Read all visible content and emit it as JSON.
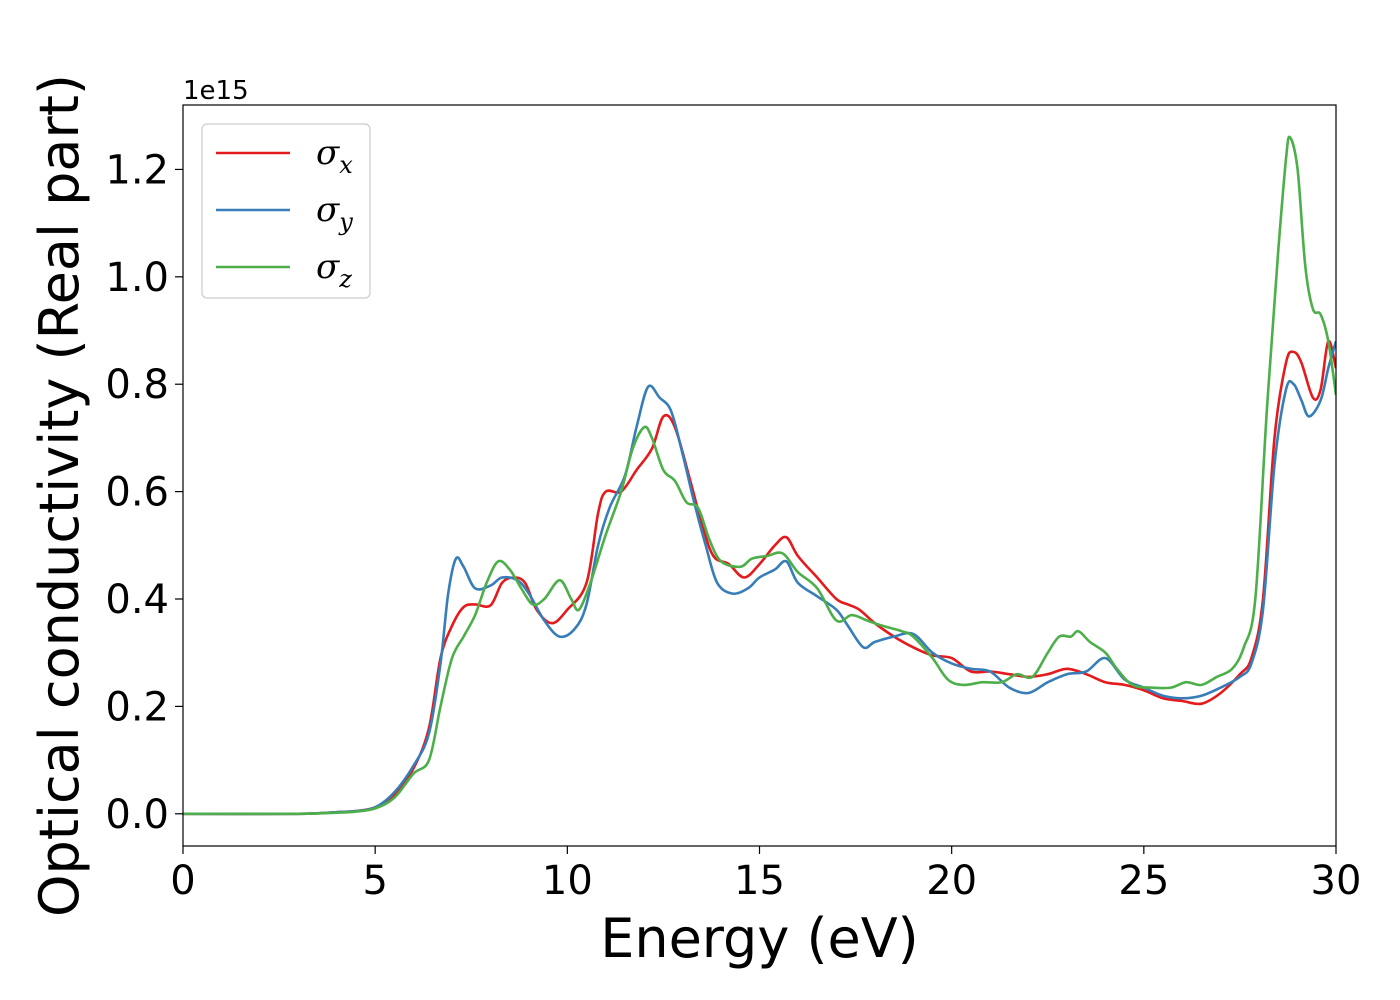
{
  "chart_data": {
    "type": "line",
    "title": "",
    "xlabel": "Energy (eV)",
    "ylabel": "Optical conductivity (Real part)",
    "y_offset_label": "1e15",
    "xlim": [
      0,
      30
    ],
    "ylim": [
      -0.06,
      1.32
    ],
    "x_ticks": [
      0,
      5,
      10,
      15,
      20,
      25,
      30
    ],
    "y_ticks": [
      0.0,
      0.2,
      0.4,
      0.6,
      0.8,
      1.0,
      1.2
    ],
    "grid": false,
    "legend_position": "top-left",
    "series": [
      {
        "name": "σx",
        "symbol": "σ",
        "subscript": "x",
        "color": "#e41a1c",
        "points": [
          [
            0,
            0
          ],
          [
            3,
            0
          ],
          [
            4,
            0.003
          ],
          [
            4.5,
            0.005
          ],
          [
            5,
            0.012
          ],
          [
            5.5,
            0.035
          ],
          [
            6,
            0.085
          ],
          [
            6.4,
            0.16
          ],
          [
            6.7,
            0.29
          ],
          [
            7,
            0.35
          ],
          [
            7.3,
            0.385
          ],
          [
            7.6,
            0.39
          ],
          [
            8,
            0.388
          ],
          [
            8.3,
            0.43
          ],
          [
            8.6,
            0.44
          ],
          [
            8.9,
            0.43
          ],
          [
            9.2,
            0.38
          ],
          [
            9.6,
            0.355
          ],
          [
            10,
            0.38
          ],
          [
            10.5,
            0.43
          ],
          [
            10.8,
            0.56
          ],
          [
            11,
            0.6
          ],
          [
            11.4,
            0.6
          ],
          [
            11.8,
            0.64
          ],
          [
            12.2,
            0.68
          ],
          [
            12.5,
            0.74
          ],
          [
            12.8,
            0.72
          ],
          [
            13.2,
            0.62
          ],
          [
            13.5,
            0.54
          ],
          [
            13.8,
            0.48
          ],
          [
            14.2,
            0.465
          ],
          [
            14.6,
            0.44
          ],
          [
            15,
            0.465
          ],
          [
            15.4,
            0.5
          ],
          [
            15.7,
            0.515
          ],
          [
            16,
            0.48
          ],
          [
            16.5,
            0.44
          ],
          [
            17,
            0.4
          ],
          [
            17.3,
            0.39
          ],
          [
            17.6,
            0.38
          ],
          [
            18,
            0.355
          ],
          [
            18.5,
            0.33
          ],
          [
            19,
            0.31
          ],
          [
            19.5,
            0.295
          ],
          [
            20,
            0.29
          ],
          [
            20.5,
            0.265
          ],
          [
            21,
            0.265
          ],
          [
            21.5,
            0.26
          ],
          [
            22,
            0.255
          ],
          [
            22.5,
            0.26
          ],
          [
            23,
            0.27
          ],
          [
            23.5,
            0.26
          ],
          [
            24,
            0.245
          ],
          [
            24.5,
            0.24
          ],
          [
            25,
            0.23
          ],
          [
            25.5,
            0.215
          ],
          [
            26,
            0.21
          ],
          [
            26.5,
            0.205
          ],
          [
            27,
            0.225
          ],
          [
            27.5,
            0.26
          ],
          [
            27.8,
            0.29
          ],
          [
            28.1,
            0.4
          ],
          [
            28.4,
            0.7
          ],
          [
            28.7,
            0.84
          ],
          [
            28.9,
            0.86
          ],
          [
            29.1,
            0.84
          ],
          [
            29.4,
            0.775
          ],
          [
            29.6,
            0.79
          ],
          [
            29.8,
            0.88
          ],
          [
            30,
            0.83
          ]
        ]
      },
      {
        "name": "σy",
        "symbol": "σ",
        "subscript": "y",
        "color": "#377eb8",
        "points": [
          [
            0,
            0
          ],
          [
            3,
            0
          ],
          [
            4,
            0.003
          ],
          [
            4.5,
            0.005
          ],
          [
            5,
            0.012
          ],
          [
            5.5,
            0.04
          ],
          [
            6,
            0.09
          ],
          [
            6.4,
            0.15
          ],
          [
            6.7,
            0.28
          ],
          [
            6.9,
            0.41
          ],
          [
            7.1,
            0.475
          ],
          [
            7.3,
            0.46
          ],
          [
            7.6,
            0.42
          ],
          [
            8,
            0.425
          ],
          [
            8.3,
            0.44
          ],
          [
            8.7,
            0.435
          ],
          [
            9,
            0.41
          ],
          [
            9.4,
            0.36
          ],
          [
            9.8,
            0.33
          ],
          [
            10.2,
            0.345
          ],
          [
            10.5,
            0.39
          ],
          [
            10.8,
            0.5
          ],
          [
            11.1,
            0.57
          ],
          [
            11.5,
            0.63
          ],
          [
            11.8,
            0.72
          ],
          [
            12.1,
            0.795
          ],
          [
            12.4,
            0.775
          ],
          [
            12.7,
            0.75
          ],
          [
            13,
            0.67
          ],
          [
            13.3,
            0.58
          ],
          [
            13.6,
            0.5
          ],
          [
            13.9,
            0.43
          ],
          [
            14.3,
            0.41
          ],
          [
            14.7,
            0.42
          ],
          [
            15,
            0.44
          ],
          [
            15.4,
            0.455
          ],
          [
            15.7,
            0.47
          ],
          [
            16,
            0.43
          ],
          [
            16.5,
            0.405
          ],
          [
            17,
            0.38
          ],
          [
            17.3,
            0.35
          ],
          [
            17.7,
            0.31
          ],
          [
            18,
            0.32
          ],
          [
            18.5,
            0.33
          ],
          [
            19,
            0.335
          ],
          [
            19.5,
            0.3
          ],
          [
            20,
            0.28
          ],
          [
            20.5,
            0.27
          ],
          [
            21,
            0.265
          ],
          [
            21.5,
            0.235
          ],
          [
            22,
            0.225
          ],
          [
            22.5,
            0.245
          ],
          [
            23,
            0.26
          ],
          [
            23.5,
            0.265
          ],
          [
            24,
            0.29
          ],
          [
            24.5,
            0.25
          ],
          [
            25,
            0.235
          ],
          [
            25.5,
            0.22
          ],
          [
            26,
            0.215
          ],
          [
            26.5,
            0.22
          ],
          [
            27,
            0.235
          ],
          [
            27.5,
            0.255
          ],
          [
            27.8,
            0.28
          ],
          [
            28.1,
            0.38
          ],
          [
            28.4,
            0.65
          ],
          [
            28.7,
            0.79
          ],
          [
            28.9,
            0.8
          ],
          [
            29.1,
            0.77
          ],
          [
            29.3,
            0.74
          ],
          [
            29.6,
            0.77
          ],
          [
            29.8,
            0.83
          ],
          [
            30,
            0.88
          ]
        ]
      },
      {
        "name": "σz",
        "symbol": "σ",
        "subscript": "z",
        "color": "#4daf4a",
        "points": [
          [
            0,
            0
          ],
          [
            3,
            0
          ],
          [
            4,
            0.002
          ],
          [
            4.5,
            0.004
          ],
          [
            5,
            0.01
          ],
          [
            5.5,
            0.03
          ],
          [
            6,
            0.075
          ],
          [
            6.4,
            0.1
          ],
          [
            6.7,
            0.2
          ],
          [
            7,
            0.29
          ],
          [
            7.3,
            0.33
          ],
          [
            7.6,
            0.37
          ],
          [
            7.9,
            0.43
          ],
          [
            8.2,
            0.47
          ],
          [
            8.5,
            0.455
          ],
          [
            8.8,
            0.42
          ],
          [
            9.1,
            0.39
          ],
          [
            9.4,
            0.4
          ],
          [
            9.8,
            0.435
          ],
          [
            10.1,
            0.4
          ],
          [
            10.3,
            0.38
          ],
          [
            10.6,
            0.43
          ],
          [
            11,
            0.52
          ],
          [
            11.4,
            0.6
          ],
          [
            11.7,
            0.68
          ],
          [
            12,
            0.72
          ],
          [
            12.2,
            0.7
          ],
          [
            12.5,
            0.64
          ],
          [
            12.8,
            0.62
          ],
          [
            13.1,
            0.58
          ],
          [
            13.4,
            0.57
          ],
          [
            13.7,
            0.51
          ],
          [
            14,
            0.47
          ],
          [
            14.5,
            0.46
          ],
          [
            14.8,
            0.475
          ],
          [
            15.2,
            0.48
          ],
          [
            15.6,
            0.485
          ],
          [
            16,
            0.45
          ],
          [
            16.5,
            0.42
          ],
          [
            17,
            0.36
          ],
          [
            17.4,
            0.37
          ],
          [
            17.8,
            0.36
          ],
          [
            18.2,
            0.35
          ],
          [
            18.7,
            0.34
          ],
          [
            19,
            0.33
          ],
          [
            19.5,
            0.29
          ],
          [
            19.9,
            0.25
          ],
          [
            20.3,
            0.24
          ],
          [
            20.8,
            0.245
          ],
          [
            21.3,
            0.245
          ],
          [
            21.7,
            0.26
          ],
          [
            22.1,
            0.255
          ],
          [
            22.5,
            0.3
          ],
          [
            22.8,
            0.33
          ],
          [
            23.1,
            0.33
          ],
          [
            23.3,
            0.34
          ],
          [
            23.6,
            0.32
          ],
          [
            24,
            0.3
          ],
          [
            24.3,
            0.27
          ],
          [
            24.7,
            0.24
          ],
          [
            25.2,
            0.235
          ],
          [
            25.7,
            0.235
          ],
          [
            26.1,
            0.245
          ],
          [
            26.5,
            0.24
          ],
          [
            26.9,
            0.255
          ],
          [
            27.3,
            0.27
          ],
          [
            27.6,
            0.31
          ],
          [
            27.9,
            0.4
          ],
          [
            28.2,
            0.75
          ],
          [
            28.5,
            1.05
          ],
          [
            28.7,
            1.22
          ],
          [
            28.8,
            1.26
          ],
          [
            29,
            1.2
          ],
          [
            29.2,
            1.02
          ],
          [
            29.4,
            0.94
          ],
          [
            29.6,
            0.93
          ],
          [
            29.8,
            0.88
          ],
          [
            30,
            0.78
          ]
        ]
      }
    ]
  }
}
